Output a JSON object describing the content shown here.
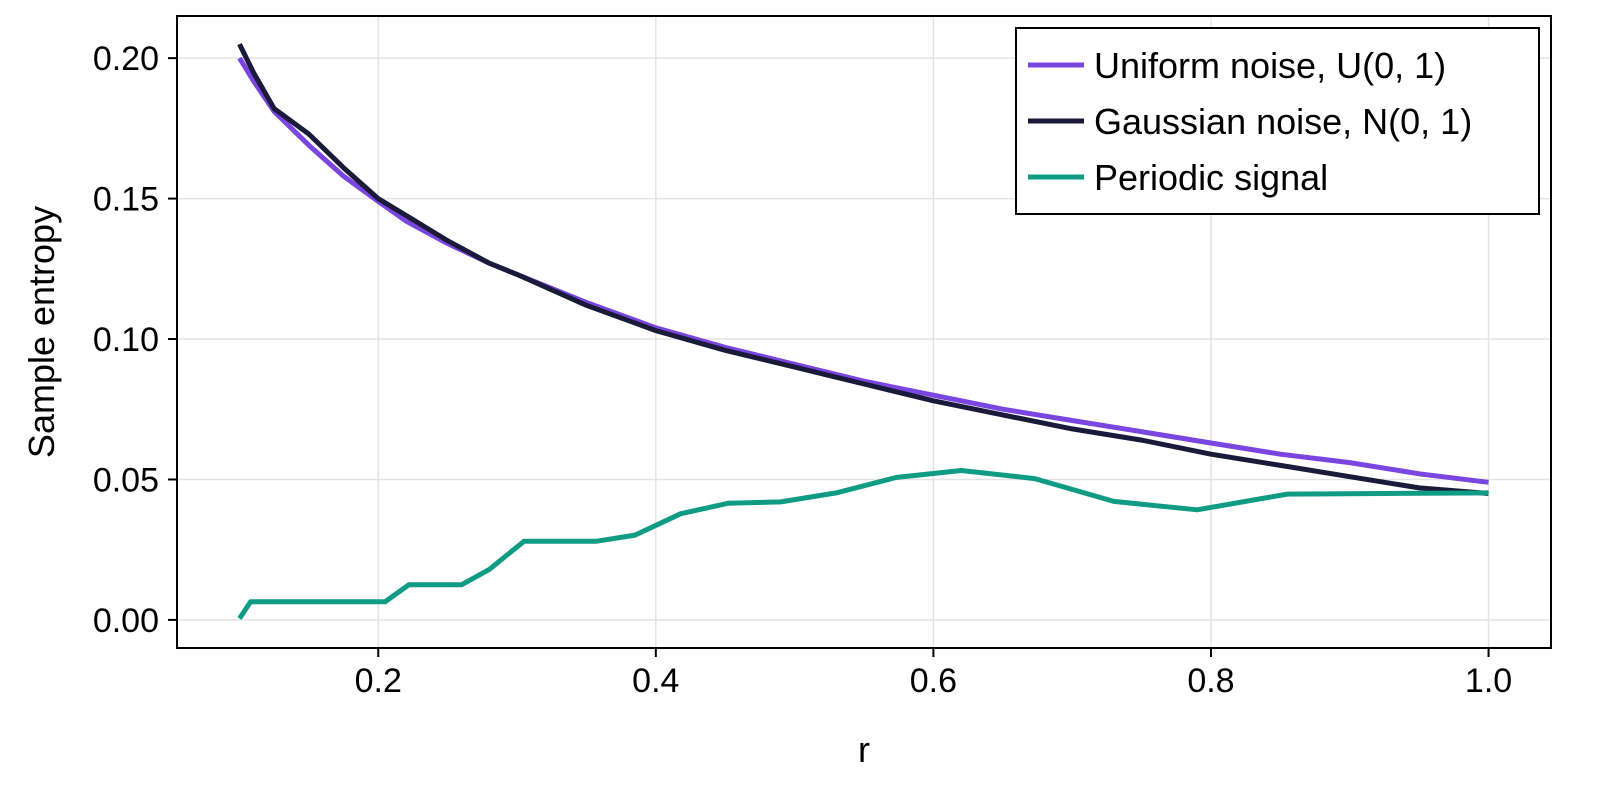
{
  "chart_data": {
    "type": "line",
    "xlabel": "r",
    "ylabel": "Sample entropy",
    "xlim": [
      0.055,
      1.045
    ],
    "ylim": [
      -0.01,
      0.215
    ],
    "xticks": [
      {
        "value": 0.2,
        "label": "0.2"
      },
      {
        "value": 0.4,
        "label": "0.4"
      },
      {
        "value": 0.6,
        "label": "0.6"
      },
      {
        "value": 0.8,
        "label": "0.8"
      },
      {
        "value": 1.0,
        "label": "1.0"
      }
    ],
    "yticks": [
      {
        "value": 0.0,
        "label": "0.00"
      },
      {
        "value": 0.05,
        "label": "0.05"
      },
      {
        "value": 0.1,
        "label": "0.10"
      },
      {
        "value": 0.15,
        "label": "0.15"
      },
      {
        "value": 0.2,
        "label": "0.20"
      }
    ],
    "grid": true,
    "legend_position": "top-right",
    "series": [
      {
        "name": "Uniform noise, U(0, 1)",
        "color": "#7b45df",
        "x": [
          0.1,
          0.11,
          0.125,
          0.15,
          0.175,
          0.2,
          0.22,
          0.25,
          0.28,
          0.3,
          0.35,
          0.4,
          0.45,
          0.5,
          0.55,
          0.6,
          0.65,
          0.7,
          0.75,
          0.8,
          0.85,
          0.9,
          0.95,
          1.0
        ],
        "y": [
          0.2,
          0.192,
          0.181,
          0.169,
          0.158,
          0.149,
          0.142,
          0.134,
          0.127,
          0.123,
          0.113,
          0.104,
          0.097,
          0.091,
          0.085,
          0.08,
          0.075,
          0.071,
          0.067,
          0.063,
          0.059,
          0.056,
          0.052,
          0.049
        ]
      },
      {
        "name": "Gaussian noise, N(0, 1)",
        "color": "#1a1a3a",
        "x": [
          0.1,
          0.11,
          0.125,
          0.15,
          0.175,
          0.2,
          0.22,
          0.25,
          0.28,
          0.3,
          0.35,
          0.4,
          0.45,
          0.5,
          0.55,
          0.6,
          0.65,
          0.7,
          0.75,
          0.8,
          0.85,
          0.9,
          0.95,
          1.0
        ],
        "y": [
          0.205,
          0.195,
          0.182,
          0.173,
          0.161,
          0.15,
          0.144,
          0.135,
          0.127,
          0.123,
          0.112,
          0.103,
          0.096,
          0.09,
          0.084,
          0.078,
          0.073,
          0.068,
          0.064,
          0.059,
          0.055,
          0.051,
          0.047,
          0.045
        ]
      },
      {
        "name": "Periodic signal",
        "color": "#109b85",
        "x": [
          0.1,
          0.108,
          0.125,
          0.15,
          0.175,
          0.205,
          0.222,
          0.26,
          0.28,
          0.305,
          0.33,
          0.357,
          0.385,
          0.418,
          0.452,
          0.49,
          0.53,
          0.573,
          0.62,
          0.673,
          0.73,
          0.79,
          0.855,
          0.925,
          1.0
        ],
        "y": [
          0.0005,
          0.0065,
          0.0065,
          0.0065,
          0.0065,
          0.0065,
          0.0125,
          0.0125,
          0.018,
          0.028,
          0.028,
          0.028,
          0.0302,
          0.0378,
          0.0415,
          0.042,
          0.0452,
          0.0507,
          0.0532,
          0.0503,
          0.0422,
          0.0392,
          0.0448,
          0.045,
          0.0452
        ]
      }
    ]
  }
}
